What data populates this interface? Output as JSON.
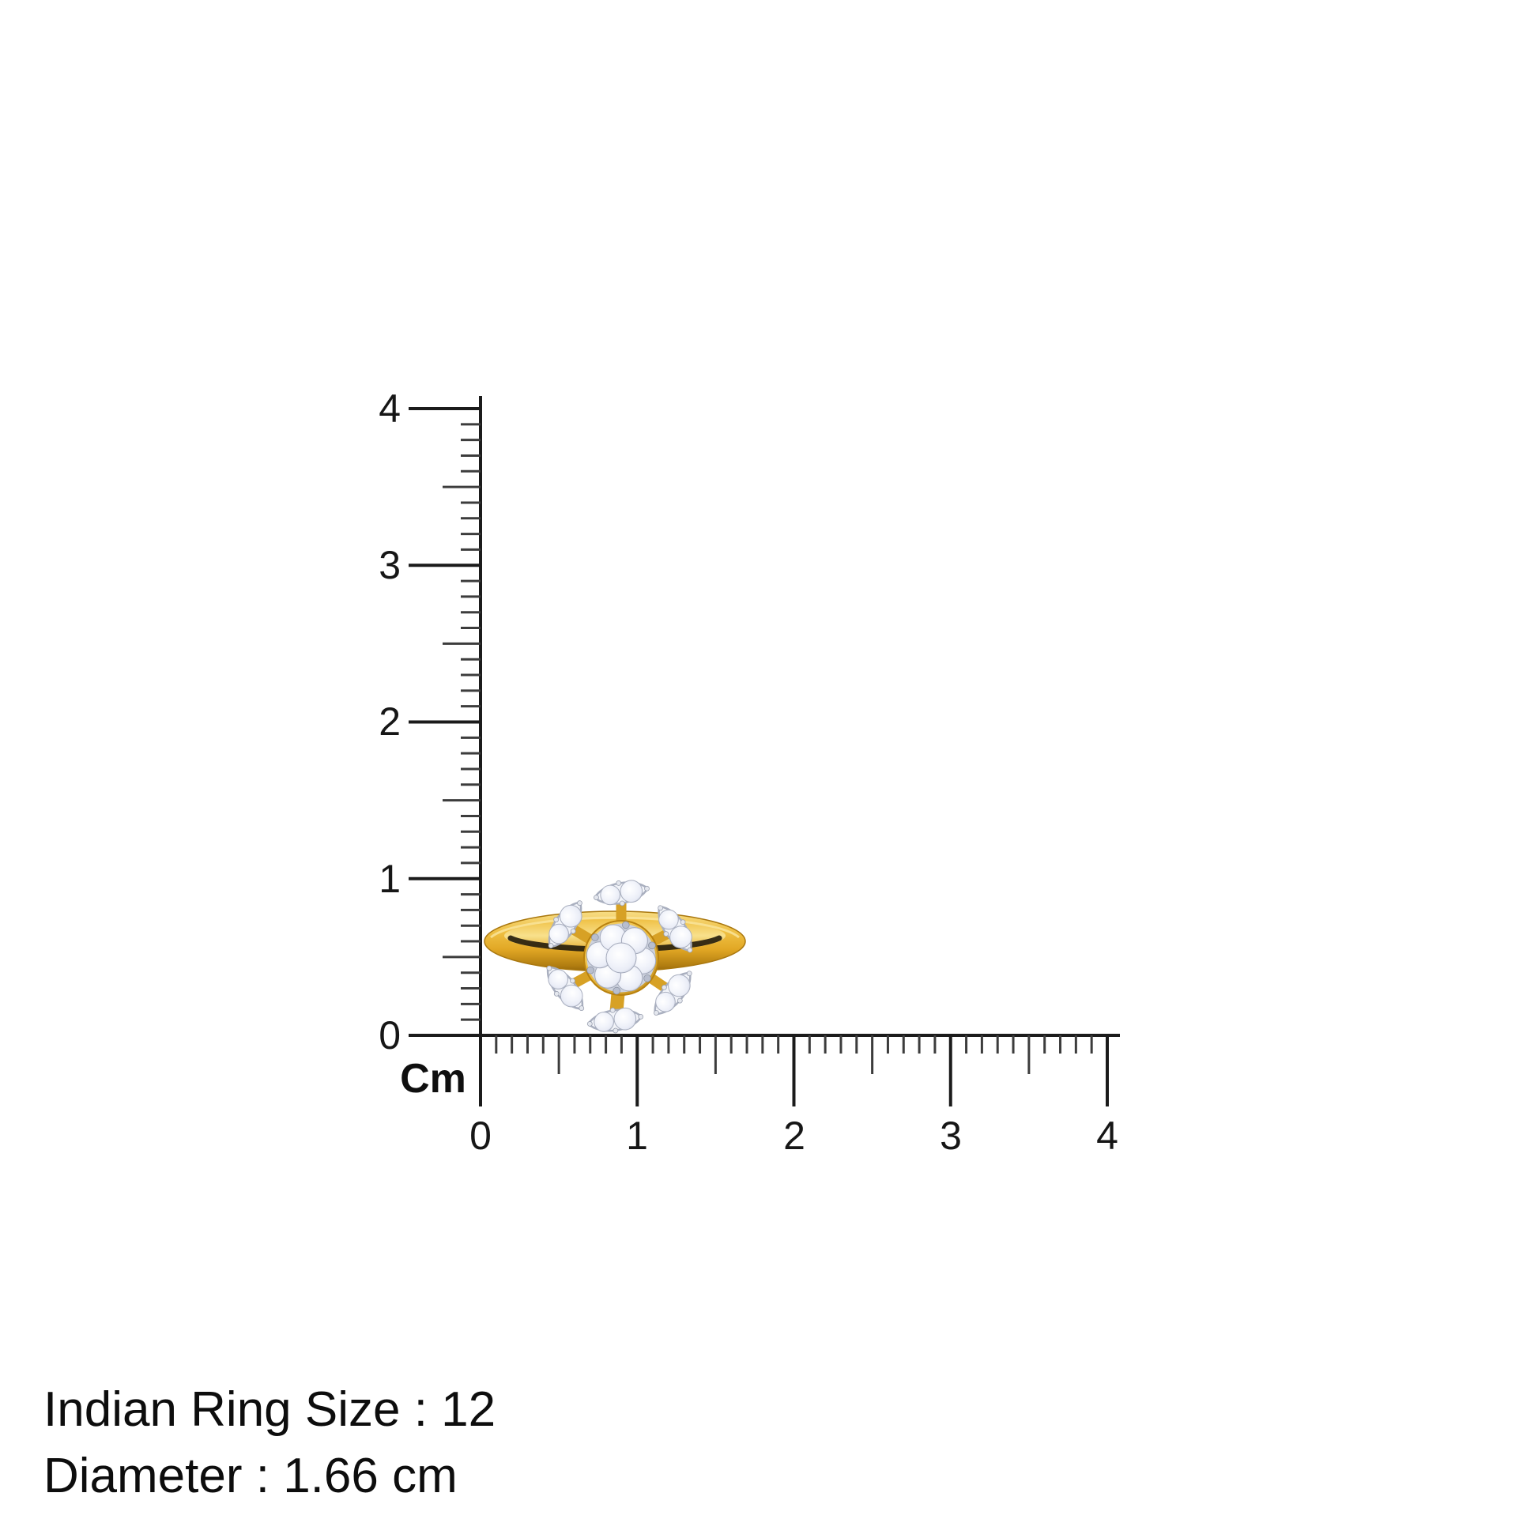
{
  "page": {
    "background": "#ffffff"
  },
  "ruler": {
    "unit_label": "Cm",
    "min": 0,
    "max": 4,
    "vertical_labels": [
      "4",
      "3",
      "2",
      "1",
      "0"
    ],
    "horizontal_labels": [
      "0",
      "1",
      "2",
      "3",
      "4"
    ]
  },
  "caption": {
    "line1": "Indian Ring Size : 12",
    "line2": "Diameter : 1.66 cm"
  },
  "measurements": {
    "indian_ring_size": "12",
    "diameter_cm": "1.66"
  },
  "colors": {
    "gold_light": "#f8e08c",
    "gold": "#efc044",
    "gold_mid": "#e2a825",
    "gold_dark": "#b07c10",
    "gold_deep": "#8a5f08",
    "diamond_light": "#ffffff",
    "diamond": "#e9ecf6",
    "diamond_dark": "#b7bed2",
    "silver": "#c9cedb",
    "silver_dark": "#9aa1b2",
    "ink": "#1b1b1b"
  }
}
